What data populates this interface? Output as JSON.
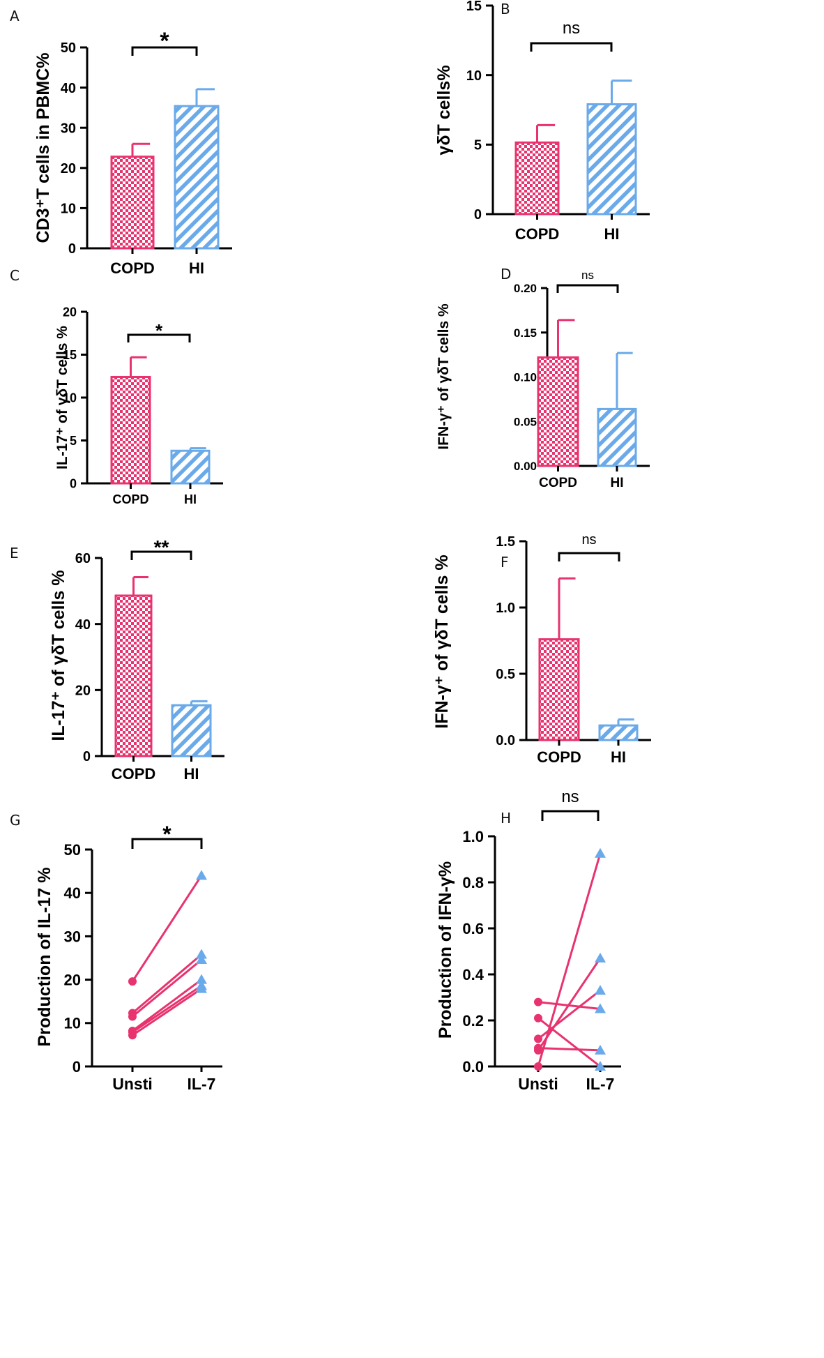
{
  "colors": {
    "copd": "#e8336e",
    "hi": "#6aaaea",
    "axis": "#000000"
  },
  "chart_data": [
    {
      "panel": "A",
      "type": "bar",
      "title": "",
      "ylabel": "CD3⁺T cells in PBMC%",
      "categories": [
        "COPD",
        "HI"
      ],
      "values": [
        22.8,
        35.4
      ],
      "errors": [
        3.2,
        4.2
      ],
      "ylim": [
        0,
        50
      ],
      "yticks": [
        "0",
        "10",
        "20",
        "30",
        "40",
        "50"
      ],
      "tick_values": [
        0,
        10,
        20,
        30,
        40,
        50
      ],
      "significance": "*"
    },
    {
      "panel": "B",
      "type": "bar",
      "title": "",
      "ylabel": "γδT cells%",
      "categories": [
        "COPD",
        "HI"
      ],
      "values": [
        5.15,
        7.9
      ],
      "errors": [
        1.25,
        1.7
      ],
      "ylim": [
        0,
        15
      ],
      "yticks": [
        "0",
        "5",
        "10",
        "15"
      ],
      "tick_values": [
        0,
        5,
        10,
        15
      ],
      "significance": "ns"
    },
    {
      "panel": "C",
      "type": "bar",
      "title": "",
      "ylabel": "IL-17⁺ of γδT cells %",
      "categories": [
        "COPD",
        "HI"
      ],
      "values": [
        12.4,
        3.8
      ],
      "errors": [
        2.3,
        0.3
      ],
      "ylim": [
        0,
        20
      ],
      "yticks": [
        "0",
        "5",
        "10",
        "15",
        "20"
      ],
      "tick_values": [
        0,
        5,
        10,
        15,
        20
      ],
      "significance": "*"
    },
    {
      "panel": "D",
      "type": "bar",
      "title": "",
      "ylabel": "IFN-γ⁺ of γδT cells %",
      "categories": [
        "COPD",
        "HI"
      ],
      "values": [
        0.122,
        0.064
      ],
      "errors": [
        0.042,
        0.063
      ],
      "ylim": [
        0,
        0.2
      ],
      "yticks": [
        "0.00",
        "0.05",
        "0.10",
        "0.15",
        "0.20"
      ],
      "tick_values": [
        0,
        0.05,
        0.1,
        0.15,
        0.2
      ],
      "significance": "ns"
    },
    {
      "panel": "E",
      "type": "bar",
      "title": "",
      "ylabel": "IL-17⁺ of γδT cells %",
      "categories": [
        "COPD",
        "HI"
      ],
      "values": [
        48.6,
        15.4
      ],
      "errors": [
        5.6,
        1.2
      ],
      "ylim": [
        0,
        60
      ],
      "yticks": [
        "0",
        "20",
        "40",
        "60"
      ],
      "tick_values": [
        0,
        20,
        40,
        60
      ],
      "significance": "**"
    },
    {
      "panel": "F",
      "type": "bar",
      "title": "",
      "ylabel": "IFN-γ⁺ of γδT cells %",
      "categories": [
        "COPD",
        "HI"
      ],
      "values": [
        0.76,
        0.11
      ],
      "errors": [
        0.46,
        0.045
      ],
      "ylim": [
        0,
        1.5
      ],
      "yticks": [
        "0.0",
        "0.5",
        "1.0",
        "1.5"
      ],
      "tick_values": [
        0,
        0.5,
        1.0,
        1.5
      ],
      "significance": "ns"
    },
    {
      "panel": "G",
      "type": "line",
      "title": "",
      "ylabel": "Production of IL-17 %",
      "categories": [
        "Unsti",
        "IL-7"
      ],
      "pairs": [
        [
          19.6,
          44.0
        ],
        [
          12.3,
          25.8
        ],
        [
          11.5,
          24.6
        ],
        [
          8.2,
          20.0
        ],
        [
          7.9,
          18.6
        ],
        [
          7.2,
          17.9
        ]
      ],
      "ylim": [
        0,
        50
      ],
      "yticks": [
        "0",
        "10",
        "20",
        "30",
        "40",
        "50"
      ],
      "tick_values": [
        0,
        10,
        20,
        30,
        40,
        50
      ],
      "significance": "*"
    },
    {
      "panel": "H",
      "type": "line",
      "title": "",
      "ylabel": "Production of IFN-γ%",
      "categories": [
        "Unsti",
        "IL-7"
      ],
      "pairs": [
        [
          0.28,
          0.25
        ],
        [
          0.21,
          0.0
        ],
        [
          0.12,
          0.33
        ],
        [
          0.08,
          0.07
        ],
        [
          0.07,
          0.47
        ],
        [
          0.0,
          0.925
        ]
      ],
      "ylim": [
        0,
        1.0
      ],
      "yticks": [
        "0.0",
        "0.2",
        "0.4",
        "0.6",
        "0.8",
        "1.0"
      ],
      "tick_values": [
        0,
        0.2,
        0.4,
        0.6,
        0.8,
        1.0
      ],
      "significance": "ns"
    }
  ]
}
